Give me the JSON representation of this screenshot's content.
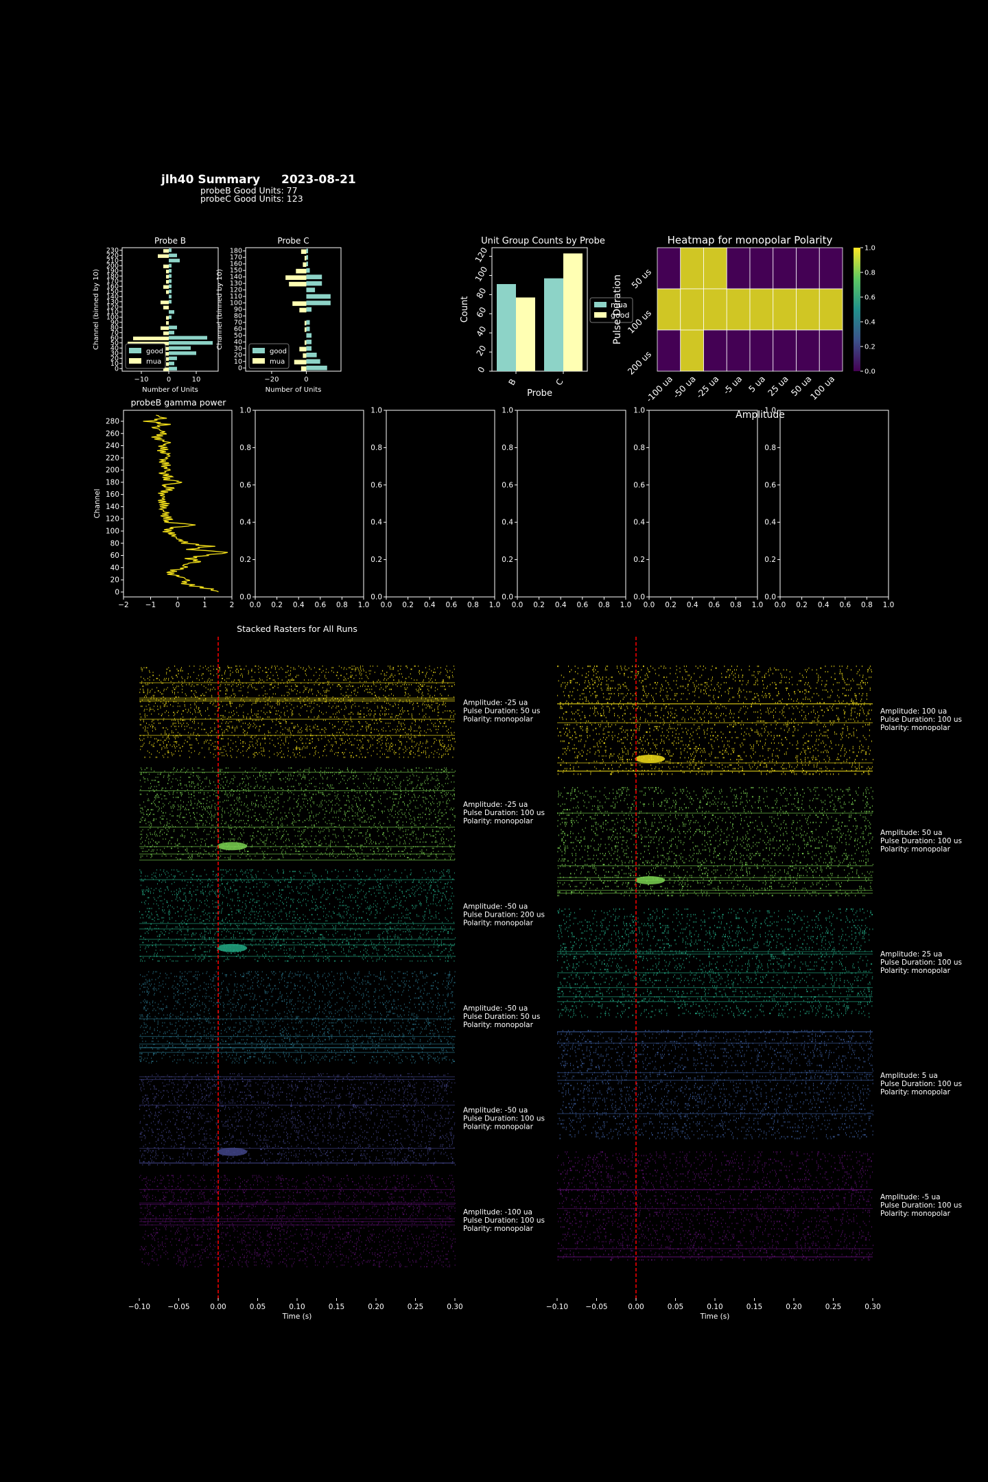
{
  "header": {
    "title": "jlh40 Summary",
    "date": "2023-08-21",
    "probeB_line": "probeB Good Units: 77",
    "probeC_line": "probeC Good Units: 123"
  },
  "colors": {
    "good": "#8dd3c7",
    "mua": "#ffffb3",
    "background": "#000000",
    "axis": "#ffffff",
    "gamma_line": "#f5e11a",
    "stim_line": "#ff0000",
    "viridis_high": "#d0c624",
    "viridis_low": "#440154"
  },
  "chart_data": [
    {
      "id": "probeB_units",
      "type": "bar",
      "orientation": "horizontal-diverging",
      "title": "Probe B",
      "xlabel": "Number of Units",
      "ylabel": "Channel (binned by 10)",
      "xlim": [
        -17,
        18
      ],
      "xticks": [
        -10,
        0,
        10
      ],
      "ylim": [
        -5,
        235
      ],
      "yticks": [
        0,
        10,
        20,
        30,
        40,
        50,
        60,
        70,
        80,
        90,
        100,
        110,
        120,
        130,
        140,
        150,
        160,
        170,
        180,
        190,
        200,
        210,
        220,
        230
      ],
      "legend": [
        "good",
        "mua"
      ],
      "legend_loc": "lower left",
      "good": [
        [
          0,
          3
        ],
        [
          10,
          2
        ],
        [
          20,
          3
        ],
        [
          30,
          10
        ],
        [
          40,
          8
        ],
        [
          50,
          16
        ],
        [
          60,
          14
        ],
        [
          70,
          2
        ],
        [
          80,
          3
        ],
        [
          100,
          1
        ],
        [
          110,
          2
        ],
        [
          130,
          1
        ],
        [
          140,
          1
        ],
        [
          150,
          1
        ],
        [
          160,
          1
        ],
        [
          170,
          1
        ],
        [
          180,
          1
        ],
        [
          190,
          1
        ],
        [
          200,
          1
        ],
        [
          210,
          4
        ],
        [
          220,
          3
        ],
        [
          230,
          1
        ]
      ],
      "mua": [
        [
          0,
          -2
        ],
        [
          10,
          -1
        ],
        [
          20,
          -1
        ],
        [
          30,
          -3
        ],
        [
          40,
          -2
        ],
        [
          50,
          -15
        ],
        [
          60,
          -13
        ],
        [
          70,
          -2
        ],
        [
          80,
          -3
        ],
        [
          90,
          -1
        ],
        [
          100,
          -1
        ],
        [
          120,
          -2
        ],
        [
          130,
          -3
        ],
        [
          150,
          -1
        ],
        [
          160,
          -2
        ],
        [
          170,
          -1
        ],
        [
          180,
          -1
        ],
        [
          190,
          -1
        ],
        [
          200,
          -2
        ],
        [
          220,
          -4
        ],
        [
          230,
          -2
        ]
      ]
    },
    {
      "id": "probeC_units",
      "type": "bar",
      "orientation": "horizontal-diverging",
      "title": "Probe C",
      "xlabel": "Number of Units",
      "ylabel": "Channel (binned by 10)",
      "xlim": [
        -35,
        20
      ],
      "xticks": [
        -20,
        0
      ],
      "ylim": [
        -5,
        185
      ],
      "yticks": [
        0,
        10,
        20,
        30,
        40,
        50,
        60,
        70,
        80,
        90,
        100,
        110,
        120,
        130,
        140,
        150,
        160,
        170,
        180
      ],
      "legend": [
        "good",
        "mua"
      ],
      "legend_loc": "lower left",
      "good": [
        [
          0,
          12
        ],
        [
          10,
          8
        ],
        [
          20,
          6
        ],
        [
          30,
          3
        ],
        [
          40,
          3
        ],
        [
          50,
          3
        ],
        [
          60,
          2
        ],
        [
          70,
          2
        ],
        [
          90,
          3
        ],
        [
          100,
          14
        ],
        [
          110,
          14
        ],
        [
          120,
          5
        ],
        [
          130,
          9
        ],
        [
          140,
          9
        ],
        [
          150,
          2
        ],
        [
          160,
          1
        ],
        [
          170,
          1
        ],
        [
          180,
          1
        ]
      ],
      "mua": [
        [
          0,
          -3
        ],
        [
          10,
          -7
        ],
        [
          20,
          -2
        ],
        [
          30,
          -4
        ],
        [
          40,
          -1
        ],
        [
          60,
          -1
        ],
        [
          70,
          -1
        ],
        [
          90,
          -4
        ],
        [
          100,
          -8
        ],
        [
          130,
          -10
        ],
        [
          140,
          -12
        ],
        [
          150,
          -6
        ],
        [
          160,
          -2
        ],
        [
          170,
          -1
        ],
        [
          180,
          -3
        ]
      ]
    },
    {
      "id": "unit_group_counts",
      "type": "bar",
      "title": "Unit Group Counts by Probe",
      "xlabel": "Probe",
      "ylabel": "Count",
      "categories": [
        "B",
        "C"
      ],
      "ylim": [
        0,
        129
      ],
      "yticks": [
        0,
        20,
        40,
        60,
        80,
        100,
        120
      ],
      "series": [
        {
          "name": "mua",
          "values": [
            91,
            97
          ]
        },
        {
          "name": "good",
          "values": [
            77,
            123
          ]
        }
      ],
      "legend_loc": "right"
    },
    {
      "id": "polarity_heatmap",
      "type": "heatmap",
      "title": "Heatmap for monopolar Polarity",
      "xlabel": "Amplitude",
      "ylabel": "Pulse Duration",
      "x": [
        "-100 ua",
        "-50 ua",
        "-25 ua",
        "-5 ua",
        "5 ua",
        "25 ua",
        "50 ua",
        "100 ua"
      ],
      "y": [
        "50 us",
        "100 us",
        "200 us"
      ],
      "values": [
        [
          0,
          1,
          1,
          0,
          0,
          0,
          0,
          0
        ],
        [
          1,
          1,
          1,
          1,
          1,
          1,
          1,
          1
        ],
        [
          0,
          1,
          0,
          0,
          0,
          0,
          0,
          0
        ]
      ],
      "colorbar_ticks": [
        "0.0",
        "0.2",
        "0.4",
        "0.6",
        "0.8",
        "1.0"
      ]
    },
    {
      "id": "probeB_gamma",
      "type": "line",
      "title": "probeB gamma power",
      "ylabel": "Channel",
      "xlim": [
        -2,
        2
      ],
      "xticks": [
        -2,
        -1,
        0,
        1,
        2
      ],
      "ylim": [
        -8,
        298
      ],
      "yticks": [
        0,
        20,
        40,
        60,
        80,
        100,
        120,
        140,
        160,
        180,
        200,
        220,
        240,
        260,
        280
      ],
      "profile": [
        [
          0,
          1.5
        ],
        [
          5,
          1.2
        ],
        [
          10,
          0.6
        ],
        [
          15,
          0.2
        ],
        [
          20,
          0.4
        ],
        [
          25,
          0.1
        ],
        [
          30,
          -0.3
        ],
        [
          35,
          -0.2
        ],
        [
          40,
          0.3
        ],
        [
          45,
          0.2
        ],
        [
          50,
          0.8
        ],
        [
          55,
          0.4
        ],
        [
          60,
          1.0
        ],
        [
          65,
          1.9
        ],
        [
          70,
          0.4
        ],
        [
          75,
          1.2
        ],
        [
          80,
          0.3
        ],
        [
          85,
          0.1
        ],
        [
          90,
          -0.1
        ],
        [
          95,
          -0.2
        ],
        [
          100,
          -0.4
        ],
        [
          105,
          -0.3
        ],
        [
          110,
          0.7
        ],
        [
          115,
          -0.5
        ],
        [
          120,
          -0.3
        ],
        [
          125,
          -0.5
        ],
        [
          130,
          -0.4
        ],
        [
          135,
          -0.6
        ],
        [
          140,
          -0.5
        ],
        [
          145,
          -0.5
        ],
        [
          150,
          -0.6
        ],
        [
          155,
          -0.5
        ],
        [
          160,
          -0.6
        ],
        [
          165,
          -0.5
        ],
        [
          170,
          -0.2
        ],
        [
          175,
          -0.6
        ],
        [
          180,
          0.2
        ],
        [
          185,
          -0.5
        ],
        [
          190,
          -0.3
        ],
        [
          195,
          -0.6
        ],
        [
          200,
          -0.3
        ],
        [
          205,
          -0.5
        ],
        [
          210,
          -0.4
        ],
        [
          215,
          -0.6
        ],
        [
          220,
          -0.4
        ],
        [
          225,
          -0.3
        ],
        [
          230,
          -0.6
        ],
        [
          235,
          -0.5
        ],
        [
          240,
          -0.6
        ],
        [
          245,
          -0.3
        ],
        [
          250,
          -0.7
        ],
        [
          255,
          -0.8
        ],
        [
          260,
          -0.5
        ],
        [
          265,
          -0.6
        ],
        [
          270,
          -0.9
        ],
        [
          275,
          -0.4
        ],
        [
          280,
          -1.1
        ],
        [
          285,
          -0.5
        ],
        [
          290,
          -0.8
        ]
      ]
    },
    {
      "id": "empty_axes",
      "type": "line",
      "count": 5,
      "xlim": [
        0,
        1
      ],
      "ylim": [
        0,
        1
      ],
      "xticks": [
        "0.0",
        "0.2",
        "0.4",
        "0.6",
        "0.8",
        "1.0"
      ],
      "yticks": [
        "0.0",
        "0.2",
        "0.4",
        "0.6",
        "0.8",
        "1.0"
      ]
    },
    {
      "id": "stacked_rasters",
      "type": "scatter",
      "title": "Stacked Rasters for All Runs",
      "xlabel": "Time (s)",
      "xlim": [
        -0.1,
        0.3
      ],
      "xticks": [
        "−0.10",
        "−0.05",
        "0.00",
        "0.05",
        "0.10",
        "0.15",
        "0.20",
        "0.25",
        "0.30"
      ],
      "stim_time": 0.0,
      "columns": [
        {
          "runs": [
            {
              "amplitude": "Amplitude: -25 ua",
              "duration": "Pulse Duration: 50 us",
              "polarity": "Polarity: monopolar",
              "color": "#f5e11a",
              "response": 0
            },
            {
              "amplitude": "Amplitude: -25 ua",
              "duration": "Pulse Duration: 100 us",
              "polarity": "Polarity: monopolar",
              "color": "#7ad151",
              "response": 1
            },
            {
              "amplitude": "Amplitude: -50 ua",
              "duration": "Pulse Duration: 200 us",
              "polarity": "Polarity: monopolar",
              "color": "#22a884",
              "response": 1
            },
            {
              "amplitude": "Amplitude: -50 ua",
              "duration": "Pulse Duration: 50 us",
              "polarity": "Polarity: monopolar",
              "color": "#2a788e",
              "response": 0
            },
            {
              "amplitude": "Amplitude: -50 ua",
              "duration": "Pulse Duration: 100 us",
              "polarity": "Polarity: monopolar",
              "color": "#414487",
              "response": 1
            },
            {
              "amplitude": "Amplitude: -100 ua",
              "duration": "Pulse Duration: 100 us",
              "polarity": "Polarity: monopolar",
              "color": "#5a0f6e",
              "response": 0
            }
          ]
        },
        {
          "runs": [
            {
              "amplitude": "Amplitude: 100 ua",
              "duration": "Pulse Duration: 100 us",
              "polarity": "Polarity: monopolar",
              "color": "#f5e11a",
              "response": 1
            },
            {
              "amplitude": "Amplitude: 50 ua",
              "duration": "Pulse Duration: 100 us",
              "polarity": "Polarity: monopolar",
              "color": "#7ad151",
              "response": 1
            },
            {
              "amplitude": "Amplitude: 25 ua",
              "duration": "Pulse Duration: 100 us",
              "polarity": "Polarity: monopolar",
              "color": "#22a884",
              "response": 0
            },
            {
              "amplitude": "Amplitude: 5 ua",
              "duration": "Pulse Duration: 100 us",
              "polarity": "Polarity: monopolar",
              "color": "#3b5b9a",
              "response": 0
            },
            {
              "amplitude": "Amplitude: -5 ua",
              "duration": "Pulse Duration: 100 us",
              "polarity": "Polarity: monopolar",
              "color": "#5a0f6e",
              "response": 0
            }
          ]
        }
      ]
    }
  ]
}
